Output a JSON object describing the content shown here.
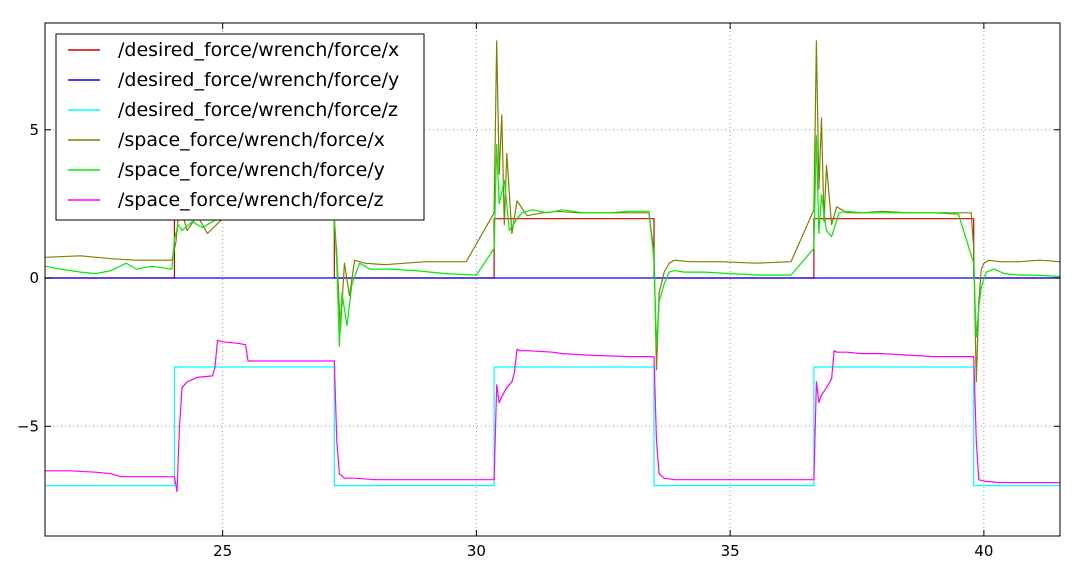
{
  "chart_data": {
    "type": "line",
    "title": "",
    "xlabel": "",
    "ylabel": "",
    "xlim": [
      21.5,
      41.5
    ],
    "ylim": [
      -8.7,
      8.6
    ],
    "xticks": [
      25,
      30,
      35,
      40
    ],
    "yticks": [
      -5,
      0,
      5
    ],
    "xtick_labels": [
      "25",
      "30",
      "35",
      "40"
    ],
    "ytick_labels": [
      "−5",
      "0",
      "5"
    ],
    "grid": true,
    "legend_position": "top-left",
    "series": [
      {
        "name": "/desired_force/wrench/force/x",
        "color": "#cc0000",
        "x": [
          21.5,
          24.05,
          24.05,
          27.2,
          27.2,
          30.35,
          30.35,
          33.5,
          33.5,
          36.65,
          36.65,
          39.8,
          39.8,
          41.5
        ],
        "y": [
          0,
          0,
          2,
          2,
          0,
          0,
          2,
          2,
          0,
          0,
          2,
          2,
          0,
          0
        ]
      },
      {
        "name": "/desired_force/wrench/force/y",
        "color": "#0000ff",
        "x": [
          21.5,
          41.5
        ],
        "y": [
          0,
          0
        ]
      },
      {
        "name": "/desired_force/wrench/force/z",
        "color": "#00ffff",
        "x": [
          21.5,
          24.05,
          24.05,
          27.2,
          27.2,
          30.35,
          30.35,
          33.5,
          33.5,
          36.65,
          36.65,
          39.8,
          39.8,
          41.5
        ],
        "y": [
          -7,
          -7,
          -3,
          -3,
          -7,
          -7,
          -3,
          -3,
          -7,
          -7,
          -3,
          -3,
          -7,
          -7
        ]
      },
      {
        "name": "/space_force/wrench/force/x",
        "color": "#808000",
        "x": [
          21.5,
          22.2,
          22.8,
          23.3,
          23.8,
          24.0,
          24.08,
          24.15,
          24.3,
          24.5,
          24.7,
          25.0,
          25.5,
          26.0,
          26.5,
          27.0,
          27.2,
          27.25,
          27.32,
          27.4,
          27.5,
          27.6,
          27.8,
          28.2,
          29.0,
          29.8,
          30.35,
          30.4,
          30.45,
          30.5,
          30.55,
          30.6,
          30.7,
          30.8,
          31.0,
          31.3,
          31.6,
          32.0,
          32.5,
          33.0,
          33.4,
          33.5,
          33.55,
          33.6,
          33.7,
          33.8,
          33.9,
          34.2,
          34.8,
          35.5,
          36.2,
          36.65,
          36.7,
          36.75,
          36.8,
          36.85,
          36.9,
          37.0,
          37.1,
          37.3,
          37.6,
          38.0,
          38.5,
          39.0,
          39.5,
          39.75,
          39.8,
          39.85,
          39.9,
          39.95,
          40.0,
          40.1,
          40.3,
          40.7,
          41.1,
          41.5
        ],
        "y": [
          0.7,
          0.75,
          0.65,
          0.6,
          0.6,
          0.6,
          1.2,
          2.5,
          1.6,
          2.1,
          1.5,
          2.0,
          2.0,
          2.1,
          2.05,
          2.0,
          2.0,
          0.8,
          -1.8,
          0.5,
          -0.6,
          0.6,
          0.5,
          0.45,
          0.55,
          0.55,
          2.2,
          8.0,
          3.5,
          5.5,
          1.8,
          4.2,
          1.5,
          2.6,
          2.1,
          2.2,
          2.25,
          2.2,
          2.2,
          2.2,
          2.2,
          0.9,
          -3.1,
          -0.5,
          0.2,
          0.5,
          0.6,
          0.55,
          0.55,
          0.5,
          0.55,
          2.3,
          8.0,
          3.0,
          5.4,
          1.9,
          3.8,
          1.8,
          2.4,
          2.2,
          2.2,
          2.25,
          2.2,
          2.2,
          2.2,
          2.2,
          1.0,
          -3.5,
          -0.8,
          0.3,
          0.5,
          0.6,
          0.55,
          0.55,
          0.6,
          0.55
        ]
      },
      {
        "name": "/space_force/wrench/force/y",
        "color": "#00ee00",
        "x": [
          21.5,
          21.8,
          22.2,
          22.5,
          22.8,
          23.1,
          23.3,
          23.6,
          24.0,
          24.05,
          24.12,
          24.2,
          24.4,
          24.6,
          24.9,
          25.2,
          25.6,
          26.0,
          26.5,
          27.0,
          27.2,
          27.25,
          27.3,
          27.35,
          27.45,
          27.55,
          27.7,
          27.9,
          28.3,
          28.8,
          29.4,
          30.0,
          30.35,
          30.4,
          30.45,
          30.55,
          30.65,
          30.8,
          30.9,
          31.1,
          31.4,
          31.7,
          32.1,
          32.6,
          33.0,
          33.4,
          33.5,
          33.55,
          33.6,
          33.7,
          33.8,
          33.9,
          34.1,
          34.5,
          35.0,
          35.6,
          36.2,
          36.65,
          36.7,
          36.75,
          36.8,
          36.9,
          37.0,
          37.15,
          37.3,
          37.6,
          38.0,
          38.5,
          39.0,
          39.5,
          39.8,
          39.85,
          39.9,
          39.95,
          40.05,
          40.2,
          40.4,
          40.7,
          41.0,
          41.5
        ],
        "y": [
          0.4,
          0.3,
          0.2,
          0.15,
          0.25,
          0.5,
          0.3,
          0.4,
          0.3,
          1.3,
          1.8,
          1.6,
          1.9,
          1.7,
          2.0,
          2.1,
          2.05,
          2.1,
          2.05,
          2.0,
          2.0,
          0.5,
          -2.3,
          -0.5,
          -1.6,
          -0.2,
          0.5,
          0.3,
          0.3,
          0.25,
          0.15,
          0.1,
          1.0,
          4.5,
          2.5,
          3.3,
          1.6,
          2.0,
          2.2,
          2.3,
          2.2,
          2.3,
          2.2,
          2.2,
          2.25,
          2.25,
          0.6,
          -2.3,
          -0.8,
          -0.2,
          0.2,
          0.25,
          0.2,
          0.2,
          0.15,
          0.1,
          0.1,
          1.0,
          4.8,
          1.5,
          2.8,
          1.6,
          1.4,
          2.2,
          2.25,
          2.2,
          2.2,
          2.2,
          2.2,
          2.15,
          0.5,
          -2.0,
          -1.0,
          -0.3,
          0.2,
          0.3,
          0.15,
          0.1,
          0.1,
          0.05
        ]
      },
      {
        "name": "/space_force/wrench/force/z",
        "color": "#ff00ff",
        "x": [
          21.5,
          22.0,
          22.5,
          22.8,
          23.0,
          23.5,
          24.0,
          24.05,
          24.1,
          24.15,
          24.2,
          24.3,
          24.5,
          24.8,
          24.85,
          24.9,
          25.0,
          25.3,
          25.45,
          25.5,
          26.0,
          26.5,
          27.0,
          27.2,
          27.25,
          27.3,
          27.4,
          27.6,
          28.0,
          29.0,
          30.35,
          30.4,
          30.45,
          30.5,
          30.6,
          30.7,
          30.75,
          30.8,
          30.85,
          31.0,
          31.5,
          31.7,
          32.2,
          33.0,
          33.5,
          33.55,
          33.6,
          33.7,
          33.9,
          34.5,
          35.5,
          36.65,
          36.7,
          36.75,
          36.8,
          36.9,
          37.0,
          37.05,
          37.1,
          37.3,
          37.6,
          38.0,
          38.5,
          39.0,
          39.8,
          39.85,
          39.9,
          40.0,
          40.3,
          41.0,
          41.5
        ],
        "y": [
          -6.5,
          -6.5,
          -6.55,
          -6.6,
          -6.7,
          -6.7,
          -6.7,
          -6.7,
          -7.2,
          -5.0,
          -3.7,
          -3.5,
          -3.35,
          -3.3,
          -3.0,
          -2.1,
          -2.15,
          -2.2,
          -2.25,
          -2.8,
          -2.8,
          -2.8,
          -2.8,
          -2.8,
          -5.5,
          -6.6,
          -6.75,
          -6.75,
          -6.8,
          -6.8,
          -6.8,
          -3.6,
          -4.2,
          -4.0,
          -3.7,
          -3.5,
          -3.2,
          -2.4,
          -2.45,
          -2.45,
          -2.5,
          -2.55,
          -2.6,
          -2.65,
          -2.65,
          -5.5,
          -6.6,
          -6.75,
          -6.8,
          -6.8,
          -6.8,
          -6.8,
          -3.5,
          -4.2,
          -3.95,
          -3.7,
          -3.4,
          -2.45,
          -2.5,
          -2.5,
          -2.55,
          -2.55,
          -2.6,
          -2.65,
          -2.65,
          -5.5,
          -6.8,
          -6.85,
          -6.9,
          -6.9,
          -6.9
        ]
      }
    ]
  }
}
